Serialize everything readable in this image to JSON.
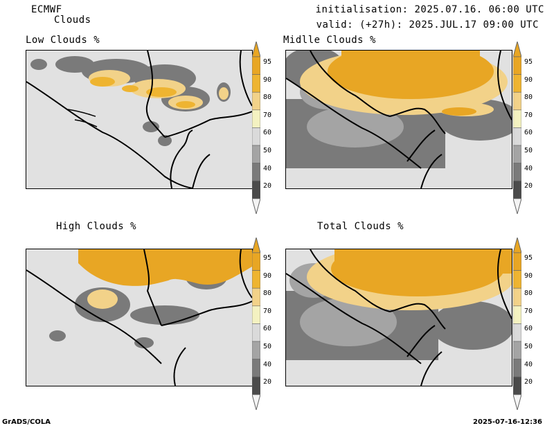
{
  "header": {
    "model": "ECMWF",
    "product": "Clouds",
    "initialisation": "initialisation: 2025.07.16. 06:00 UTC",
    "valid": "valid: (+27h): 2025.JUL.17 09:00 UTC"
  },
  "panels": [
    {
      "id": "low",
      "title": "Low Clouds %"
    },
    {
      "id": "middle",
      "title": "Midlle Clouds %"
    },
    {
      "id": "high",
      "title": "High Clouds %"
    },
    {
      "id": "total",
      "title": "Total Clouds %"
    }
  ],
  "colorbar": {
    "labels": [
      "95",
      "90",
      "80",
      "70",
      "60",
      "50",
      "40",
      "20"
    ],
    "colors": [
      "#e8a624",
      "#eeb431",
      "#f2d289",
      "#f4f2c1",
      "#dadada",
      "#a4a4a4",
      "#7a7a7a",
      "#4b4b4b"
    ],
    "top_arrow": "#e8a624",
    "bottom_arrow": "#f4f4f4",
    "background": "#e1e1e1"
  },
  "footer": {
    "left": "GrADS/COLA",
    "right": "2025-07-16-12:36"
  }
}
